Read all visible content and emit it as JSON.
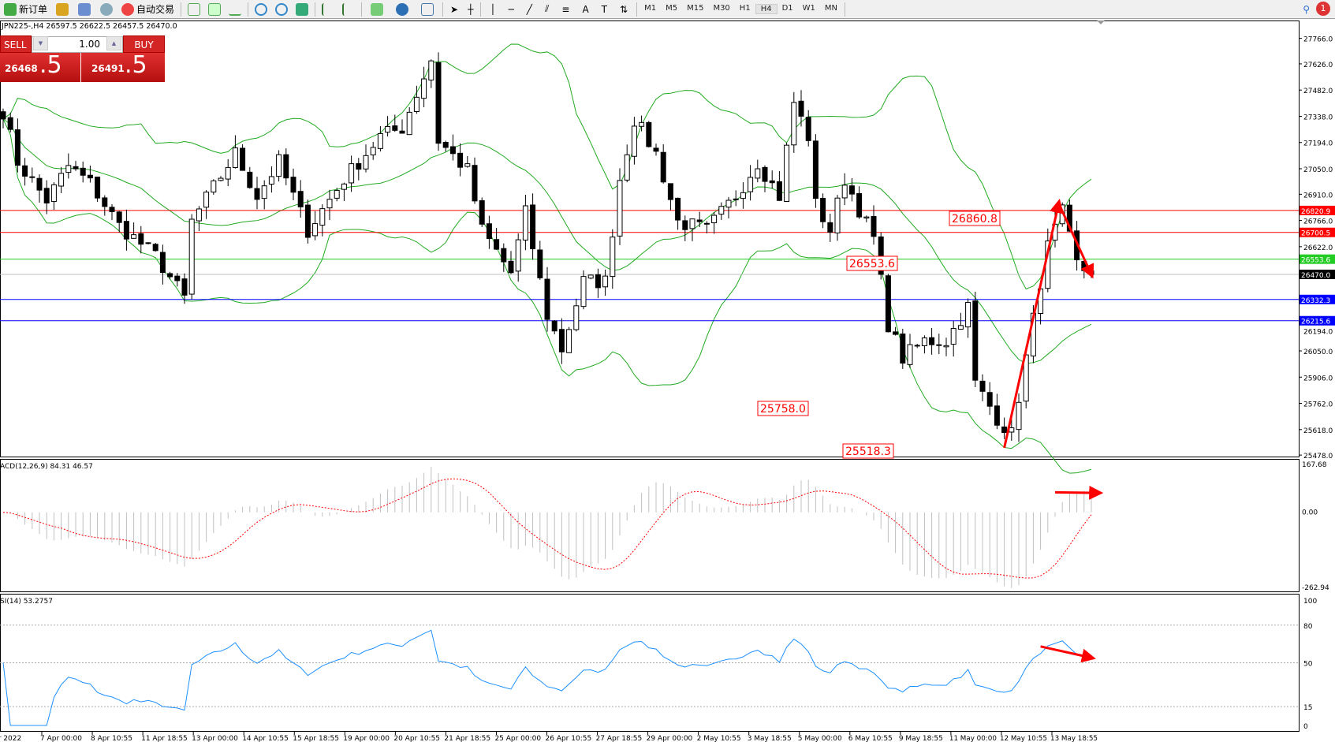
{
  "toolbar": {
    "new_order": "新订单",
    "auto_trading": "自动交易",
    "timeframes": [
      "M1",
      "M5",
      "M15",
      "M30",
      "H1",
      "H4",
      "D1",
      "W1",
      "MN"
    ],
    "active_timeframe": "H4",
    "notification_count": "1"
  },
  "chart": {
    "header": "JPN225-,H4  26597.5 26622.5 26457.5 26470.0",
    "trade_panel": {
      "sell_label": "SELL",
      "buy_label": "BUY",
      "lot": "1.00",
      "sell_price_main": "26468",
      "sell_price_frac": ".5",
      "buy_price_main": "26491",
      "buy_price_frac": ".5"
    },
    "price_axis": [
      "27766.0",
      "27626.0",
      "27482.0",
      "27338.0",
      "27194.0",
      "27050.0",
      "26910.0",
      "26766.0",
      "26622.0",
      "26194.0",
      "26050.0",
      "25906.0",
      "25762.0",
      "25618.0",
      "25478.0"
    ],
    "hlines": [
      {
        "price": 26820.9,
        "label": "26820.9",
        "color": "#ff0000"
      },
      {
        "price": 26700.5,
        "label": "26700.5",
        "color": "#ff0000"
      },
      {
        "price": 26553.6,
        "label": "26553.6",
        "color": "#22cc22"
      },
      {
        "price": 26470.0,
        "label": "26470.0",
        "color": "#000000",
        "line": "#c0c0c0"
      },
      {
        "price": 26332.3,
        "label": "26332.3",
        "color": "#0000ff"
      },
      {
        "price": 26215.6,
        "label": "26215.6",
        "color": "#0000ff"
      }
    ],
    "annotations": [
      "26860.8",
      "26553.6",
      "25758.0",
      "25518.3"
    ],
    "price_path": [
      [
        0,
        27368
      ],
      [
        2,
        27088
      ],
      [
        6,
        26877
      ],
      [
        9,
        27064
      ],
      [
        12,
        26971
      ],
      [
        16,
        26737
      ],
      [
        21,
        26573
      ],
      [
        25,
        26339
      ],
      [
        26,
        26760
      ],
      [
        32,
        27134
      ],
      [
        35,
        26900
      ],
      [
        38,
        27088
      ],
      [
        42,
        26713
      ],
      [
        47,
        26994
      ],
      [
        52,
        27228
      ],
      [
        55,
        27275
      ],
      [
        59,
        27649
      ],
      [
        60,
        27205
      ],
      [
        64,
        27041
      ],
      [
        66,
        26713
      ],
      [
        70,
        26479
      ],
      [
        72,
        26807
      ],
      [
        75,
        26245
      ],
      [
        77,
        26058
      ],
      [
        80,
        26432
      ],
      [
        83,
        26432
      ],
      [
        85,
        26994
      ],
      [
        87,
        27322
      ],
      [
        90,
        27134
      ],
      [
        93,
        26760
      ],
      [
        97,
        26713
      ],
      [
        101,
        26900
      ],
      [
        104,
        27088
      ],
      [
        107,
        26900
      ],
      [
        109,
        27415
      ],
      [
        111,
        27228
      ],
      [
        112,
        26853
      ],
      [
        114,
        26713
      ],
      [
        116,
        26994
      ],
      [
        120,
        26666
      ],
      [
        122,
        26198
      ],
      [
        124,
        26011
      ],
      [
        127,
        26105
      ],
      [
        130,
        26105
      ],
      [
        133,
        26292
      ],
      [
        134,
        25871
      ],
      [
        137,
        25684
      ],
      [
        139,
        25590
      ],
      [
        141,
        26011
      ],
      [
        143,
        26432
      ],
      [
        144,
        26619
      ],
      [
        146,
        26807
      ],
      [
        148,
        26526
      ],
      [
        150,
        26470
      ]
    ],
    "trendlines": [
      [
        [
          138,
          25518
        ],
        [
          145.5,
          26860
        ]
      ],
      [
        [
          145.5,
          26860
        ],
        [
          150,
          26470
        ]
      ]
    ]
  },
  "macd": {
    "label": "ACD(12,26,9) 84.31 46.57",
    "axis": [
      "167.68",
      "0.00",
      "-262.94"
    ]
  },
  "rsi": {
    "label": "SI(14) 53.2757",
    "axis": [
      "100",
      "80",
      "50",
      "15",
      "0"
    ]
  },
  "time_axis": [
    "pr 2022",
    "7 Apr 00:00",
    "8 Apr 10:55",
    "11 Apr 18:55",
    "13 Apr 00:00",
    "14 Apr 10:55",
    "15 Apr 18:55",
    "19 Apr 00:00",
    "20 Apr 10:55",
    "21 Apr 18:55",
    "25 Apr 00:00",
    "26 Apr 10:55",
    "27 Apr 18:55",
    "29 Apr 00:00",
    "2 May 10:55",
    "3 May 18:55",
    "5 May 00:00",
    "6 May 10:55",
    "9 May 18:55",
    "11 May 00:00",
    "12 May 10:55",
    "13 May 18:55"
  ],
  "colors": {
    "bands": "#22aa22",
    "macd_signal": "#ff0000",
    "macd_hist": "#c0c0c0",
    "rsi": "#1e90ff",
    "arrow": "#ff0000"
  }
}
